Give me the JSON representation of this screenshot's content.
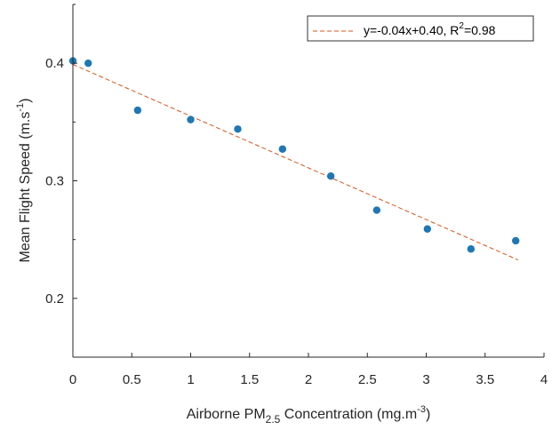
{
  "chart_data": {
    "type": "scatter",
    "title": "",
    "xlabel": {
      "prefix": "Airborne PM",
      "subscript": "2.5",
      "suffix": " Concentration (mg.m",
      "superscript": "-3",
      "end": ")"
    },
    "ylabel": {
      "prefix": "Mean Flight Speed (m.s",
      "superscript": "-1",
      "end": ")"
    },
    "xlim": [
      0,
      4
    ],
    "ylim": [
      0.15,
      0.45
    ],
    "xticks": [
      0,
      0.5,
      1,
      1.5,
      2,
      2.5,
      3,
      3.5,
      4
    ],
    "xtick_labels": [
      "0",
      "0.5",
      "1",
      "1.5",
      "2",
      "2.5",
      "3",
      "3.5",
      "4"
    ],
    "yticks": [
      0.2,
      0.3,
      0.4
    ],
    "ytick_labels": [
      "0.2",
      "0.3",
      "0.4"
    ],
    "grid": false,
    "series": [
      {
        "marker_color": "#1f77b4",
        "x": [
          0.0,
          0.13,
          0.55,
          1.0,
          1.4,
          1.78,
          2.19,
          2.58,
          3.01,
          3.38,
          3.76
        ],
        "y": [
          0.402,
          0.4,
          0.36,
          0.352,
          0.344,
          0.327,
          0.304,
          0.275,
          0.259,
          0.242,
          0.249
        ]
      }
    ],
    "fit_line": {
      "slope": -0.044,
      "intercept": 0.399,
      "x_range": [
        0,
        3.78
      ],
      "color": "#d95319",
      "style": "dashed"
    },
    "legend": {
      "position": "top-right",
      "entry": {
        "prefix": "y=-0.04x+0.40, R",
        "superscript": "2",
        "suffix": "=0.98"
      }
    }
  }
}
